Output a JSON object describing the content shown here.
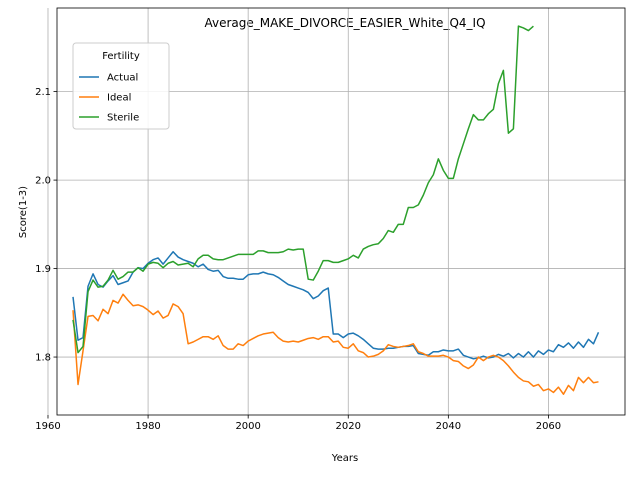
{
  "chart_data": {
    "type": "line",
    "title": "Average_MAKE_DIVORCE_EASIER_White_Q4_IQ",
    "xlabel": "Years",
    "ylabel": "Score(1-3)",
    "xlim": [
      1961.8,
      2075.3
    ],
    "ylim": [
      1.7345,
      2.1945
    ],
    "xticks": [
      1960,
      1980,
      2000,
      2020,
      2040,
      2060
    ],
    "yticks": [
      1.8,
      1.9,
      2.0,
      2.1
    ],
    "ytick_labels": [
      "1.8",
      "1.9",
      "2.0",
      "2.1"
    ],
    "grid": true,
    "legend": {
      "title": "Fertility",
      "position": "top-left"
    },
    "series": [
      {
        "name": "Actual",
        "color": "#1f77b4",
        "x": [
          1965,
          1966,
          1967,
          1968,
          1969,
          1970,
          1971,
          1972,
          1973,
          1974,
          1975,
          1976,
          1977,
          1978,
          1979,
          1980,
          1981,
          1982,
          1983,
          1984,
          1985,
          1986,
          1987,
          1988,
          1989,
          1990,
          1991,
          1992,
          1993,
          1994,
          1995,
          1996,
          1997,
          1998,
          1999,
          2000,
          2001,
          2002,
          2003,
          2004,
          2005,
          2006,
          2007,
          2008,
          2009,
          2010,
          2011,
          2012,
          2013,
          2014,
          2015,
          2016,
          2017,
          2018,
          2019,
          2020,
          2021,
          2022,
          2023,
          2024,
          2025,
          2026,
          2027,
          2028,
          2029,
          2030,
          2031,
          2032,
          2033,
          2034,
          2035,
          2036,
          2037,
          2038,
          2039,
          2040,
          2041,
          2042,
          2043,
          2044,
          2045,
          2046,
          2047,
          2048,
          2049,
          2050,
          2051,
          2052,
          2053,
          2054,
          2055,
          2056,
          2057,
          2058,
          2059,
          2060,
          2061,
          2062,
          2063,
          2064,
          2065,
          2066,
          2067,
          2068,
          2069,
          2070
        ],
        "y": [
          1.868,
          1.819,
          1.822,
          1.88,
          1.894,
          1.882,
          1.879,
          1.886,
          1.892,
          1.882,
          1.884,
          1.886,
          1.896,
          1.901,
          1.9,
          1.906,
          1.91,
          1.912,
          1.905,
          1.912,
          1.919,
          1.913,
          1.91,
          1.908,
          1.906,
          1.902,
          1.905,
          1.899,
          1.897,
          1.898,
          1.891,
          1.889,
          1.889,
          1.888,
          1.888,
          1.893,
          1.894,
          1.894,
          1.896,
          1.894,
          1.893,
          1.89,
          1.886,
          1.882,
          1.88,
          1.878,
          1.876,
          1.873,
          1.866,
          1.869,
          1.875,
          1.878,
          1.826,
          1.826,
          1.822,
          1.826,
          1.827,
          1.824,
          1.82,
          1.815,
          1.81,
          1.809,
          1.809,
          1.81,
          1.81,
          1.811,
          1.812,
          1.812,
          1.813,
          1.804,
          1.803,
          1.802,
          1.806,
          1.806,
          1.808,
          1.807,
          1.807,
          1.809,
          1.802,
          1.8,
          1.798,
          1.799,
          1.801,
          1.799,
          1.8,
          1.803,
          1.801,
          1.804,
          1.799,
          1.804,
          1.8,
          1.806,
          1.8,
          1.807,
          1.803,
          1.808,
          1.806,
          1.814,
          1.811,
          1.816,
          1.81,
          1.817,
          1.811,
          1.82,
          1.815,
          1.828
        ]
      },
      {
        "name": "Ideal",
        "color": "#ff7f0e",
        "x": [
          1965,
          1966,
          1967,
          1968,
          1969,
          1970,
          1971,
          1972,
          1973,
          1974,
          1975,
          1976,
          1977,
          1978,
          1979,
          1980,
          1981,
          1982,
          1983,
          1984,
          1985,
          1986,
          1987,
          1988,
          1989,
          1990,
          1991,
          1992,
          1993,
          1994,
          1995,
          1996,
          1997,
          1998,
          1999,
          2000,
          2001,
          2002,
          2003,
          2004,
          2005,
          2006,
          2007,
          2008,
          2009,
          2010,
          2011,
          2012,
          2013,
          2014,
          2015,
          2016,
          2017,
          2018,
          2019,
          2020,
          2021,
          2022,
          2023,
          2024,
          2025,
          2026,
          2027,
          2028,
          2029,
          2030,
          2031,
          2032,
          2033,
          2034,
          2035,
          2036,
          2037,
          2038,
          2039,
          2040,
          2041,
          2042,
          2043,
          2044,
          2045,
          2046,
          2047,
          2048,
          2049,
          2050,
          2051,
          2052,
          2053,
          2054,
          2055,
          2056,
          2057,
          2058,
          2059,
          2060,
          2061,
          2062,
          2063,
          2064,
          2065,
          2066,
          2067,
          2068,
          2069,
          2070
        ],
        "y": [
          1.853,
          1.769,
          1.807,
          1.846,
          1.847,
          1.841,
          1.854,
          1.849,
          1.864,
          1.861,
          1.871,
          1.864,
          1.858,
          1.859,
          1.857,
          1.853,
          1.848,
          1.852,
          1.844,
          1.847,
          1.86,
          1.857,
          1.849,
          1.815,
          1.817,
          1.82,
          1.823,
          1.823,
          1.82,
          1.824,
          1.813,
          1.809,
          1.809,
          1.815,
          1.813,
          1.818,
          1.821,
          1.824,
          1.826,
          1.827,
          1.828,
          1.822,
          1.818,
          1.817,
          1.818,
          1.817,
          1.819,
          1.821,
          1.822,
          1.82,
          1.823,
          1.823,
          1.817,
          1.818,
          1.811,
          1.81,
          1.815,
          1.807,
          1.805,
          1.8,
          1.801,
          1.803,
          1.807,
          1.814,
          1.812,
          1.811,
          1.812,
          1.813,
          1.815,
          1.806,
          1.804,
          1.801,
          1.801,
          1.801,
          1.802,
          1.8,
          1.796,
          1.795,
          1.79,
          1.787,
          1.791,
          1.8,
          1.796,
          1.8,
          1.802,
          1.8,
          1.796,
          1.79,
          1.783,
          1.777,
          1.773,
          1.772,
          1.767,
          1.769,
          1.762,
          1.764,
          1.76,
          1.766,
          1.758,
          1.768,
          1.762,
          1.777,
          1.771,
          1.777,
          1.771,
          1.772
        ]
      },
      {
        "name": "Sterile",
        "color": "#2ca02c",
        "x": [
          1965,
          1966,
          1967,
          1968,
          1969,
          1970,
          1971,
          1972,
          1973,
          1974,
          1975,
          1976,
          1977,
          1978,
          1979,
          1980,
          1981,
          1982,
          1983,
          1984,
          1985,
          1986,
          1987,
          1988,
          1989,
          1990,
          1991,
          1992,
          1993,
          1994,
          1995,
          1996,
          1997,
          1998,
          1999,
          2000,
          2001,
          2002,
          2003,
          2004,
          2005,
          2006,
          2007,
          2008,
          2009,
          2010,
          2011,
          2012,
          2013,
          2014,
          2015,
          2016,
          2017,
          2018,
          2019,
          2020,
          2021,
          2022,
          2023,
          2024,
          2025,
          2026,
          2027,
          2028,
          2029,
          2030,
          2031,
          2032,
          2033,
          2034,
          2035,
          2036,
          2037,
          2038,
          2039,
          2040,
          2041,
          2042,
          2043,
          2044,
          2045,
          2046,
          2047,
          2048,
          2049,
          2050,
          2051,
          2052,
          2053,
          2054,
          2055,
          2056,
          2057
        ],
        "y": [
          1.842,
          1.805,
          1.812,
          1.874,
          1.887,
          1.879,
          1.88,
          1.887,
          1.898,
          1.888,
          1.891,
          1.896,
          1.896,
          1.901,
          1.897,
          1.905,
          1.907,
          1.906,
          1.901,
          1.906,
          1.908,
          1.904,
          1.905,
          1.906,
          1.902,
          1.911,
          1.915,
          1.915,
          1.911,
          1.91,
          1.91,
          1.912,
          1.914,
          1.916,
          1.916,
          1.916,
          1.916,
          1.92,
          1.92,
          1.918,
          1.918,
          1.918,
          1.919,
          1.922,
          1.921,
          1.922,
          1.922,
          1.888,
          1.887,
          1.897,
          1.909,
          1.909,
          1.907,
          1.907,
          1.909,
          1.911,
          1.915,
          1.912,
          1.922,
          1.925,
          1.927,
          1.928,
          1.934,
          1.943,
          1.941,
          1.95,
          1.95,
          1.969,
          1.969,
          1.972,
          1.983,
          1.997,
          2.006,
          2.024,
          2.011,
          2.002,
          2.002,
          2.024,
          2.041,
          2.058,
          2.074,
          2.068,
          2.068,
          2.075,
          2.08,
          2.109,
          2.124,
          2.053,
          2.058,
          2.174,
          2.172,
          2.169,
          2.174
        ]
      }
    ]
  }
}
